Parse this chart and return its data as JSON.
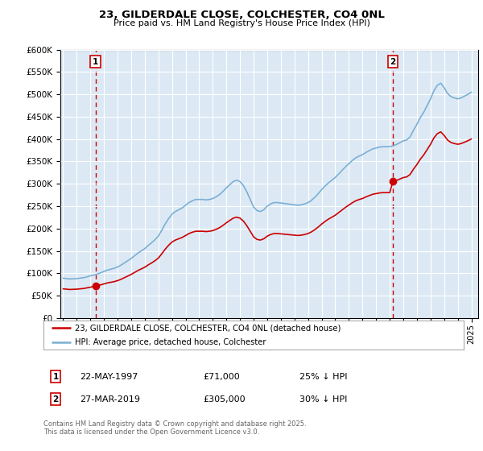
{
  "title": "23, GILDERDALE CLOSE, COLCHESTER, CO4 0NL",
  "subtitle": "Price paid vs. HM Land Registry's House Price Index (HPI)",
  "legend_line1": "23, GILDERDALE CLOSE, COLCHESTER, CO4 0NL (detached house)",
  "legend_line2": "HPI: Average price, detached house, Colchester",
  "sale1_date": "22-MAY-1997",
  "sale1_price": 71000,
  "sale1_label": "25% ↓ HPI",
  "sale1_year": 1997.38,
  "sale2_date": "27-MAR-2019",
  "sale2_price": 305000,
  "sale2_label": "30% ↓ HPI",
  "sale2_year": 2019.23,
  "ylim": [
    0,
    600000
  ],
  "xlim_start": 1994.8,
  "xlim_end": 2025.5,
  "footer": "Contains HM Land Registry data © Crown copyright and database right 2025.\nThis data is licensed under the Open Government Licence v3.0.",
  "plot_bg": "#dce9f5",
  "red_line_color": "#cc0000",
  "blue_line_color": "#7bafd4",
  "grid_color": "#ffffff",
  "marker_box_color": "#cc0000"
}
